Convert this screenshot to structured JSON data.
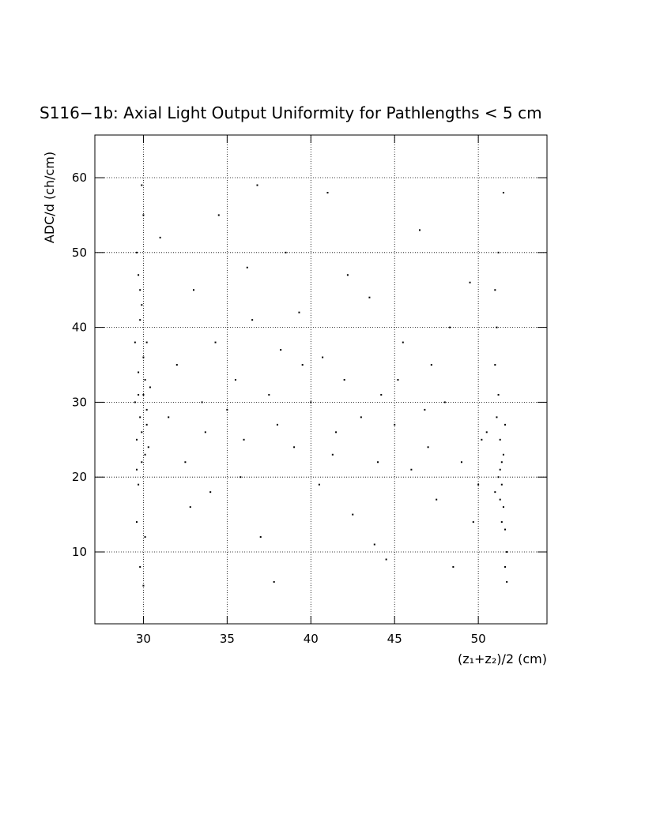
{
  "chart_data": {
    "type": "scatter",
    "title": "S116−1b: Axial Light Output Uniformity for Pathlengths < 5 cm",
    "x_label": "(z₁+z₂)/2 (cm)",
    "y_label": "ADC/d (ch/cm)",
    "xlim": [
      27.1,
      54.1
    ],
    "ylim": [
      0.4,
      65.7
    ],
    "xticks": [
      30,
      35,
      40,
      45,
      50
    ],
    "yticks": [
      10,
      20,
      30,
      40,
      50,
      60
    ],
    "grid": true,
    "series": [
      {
        "color": "#000000",
        "x": [
          29.6,
          29.8,
          30.0,
          29.7,
          30.2,
          29.9,
          29.5,
          30.1,
          29.8,
          29.6,
          30.0,
          29.9,
          29.7,
          30.3,
          29.5,
          30.0,
          29.8,
          29.6,
          30.2,
          29.9,
          30.4,
          29.7,
          30.1,
          29.8,
          30.0,
          29.6,
          30.2,
          29.9,
          29.7,
          30.1,
          51.2,
          51.4,
          51.0,
          51.5,
          51.3,
          51.6,
          51.1,
          51.4,
          51.7,
          51.2,
          51.0,
          51.5,
          51.3,
          51.6,
          51.1,
          51.4,
          51.2,
          51.5,
          51.7,
          51.0,
          51.3,
          51.6,
          31.5,
          32.0,
          32.5,
          33.0,
          33.5,
          34.0,
          34.5,
          35.0,
          35.5,
          36.0,
          36.5,
          37.0,
          37.5,
          38.0,
          38.5,
          39.0,
          39.5,
          40.0,
          40.5,
          41.0,
          41.5,
          42.0,
          42.5,
          43.0,
          43.5,
          44.0,
          44.5,
          45.0,
          45.5,
          46.0,
          46.5,
          47.0,
          47.5,
          48.0,
          48.5,
          49.0,
          49.5,
          50.0,
          50.5,
          31.0,
          32.8,
          34.3,
          36.2,
          37.8,
          39.3,
          40.7,
          42.2,
          43.8,
          45.2,
          46.8,
          48.3,
          49.7,
          33.7,
          35.8,
          38.2,
          41.3,
          44.2,
          47.2,
          50.2,
          36.8
        ],
        "y": [
          25,
          28,
          31,
          34,
          27,
          22,
          38,
          33,
          45,
          50,
          55,
          59,
          19,
          24,
          30,
          36,
          41,
          14,
          29,
          26,
          32,
          47,
          12,
          8,
          5.5,
          21,
          38,
          43,
          31,
          23,
          20,
          22,
          18,
          16,
          25,
          13,
          28,
          19,
          10,
          31,
          35,
          23,
          17,
          8,
          40,
          14,
          50,
          58,
          6,
          45,
          21,
          27,
          28,
          35,
          22,
          45,
          30,
          18,
          55,
          29,
          33,
          25,
          41,
          12,
          31,
          27,
          50,
          24,
          35,
          30,
          19,
          58,
          26,
          33,
          15,
          28,
          44,
          22,
          9,
          27,
          38,
          21,
          53,
          24,
          17,
          30,
          8,
          22,
          46,
          19,
          26,
          52,
          16,
          38,
          48,
          6,
          42,
          36,
          47,
          11,
          33,
          29,
          40,
          14,
          26,
          20,
          37,
          23,
          31,
          35,
          25,
          59
        ]
      }
    ]
  }
}
